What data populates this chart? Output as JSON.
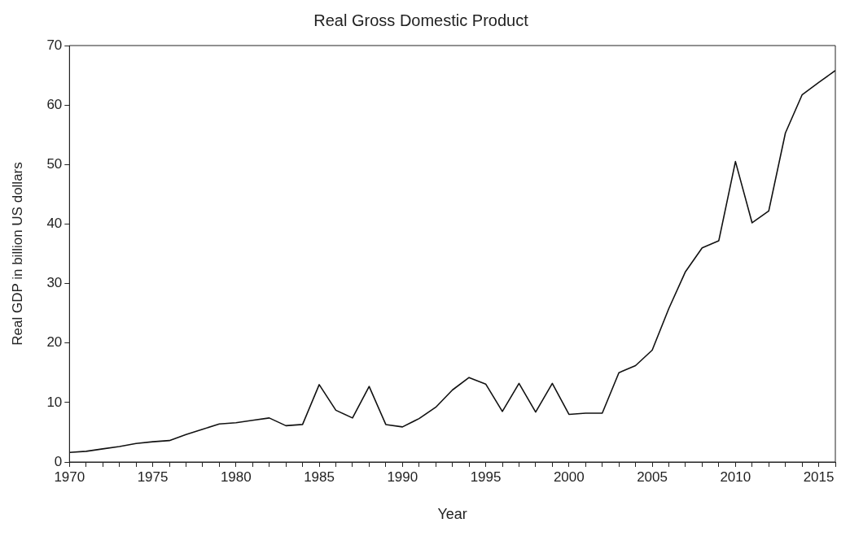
{
  "chart_data": {
    "type": "line",
    "title": "Real Gross Domestic Product",
    "xlabel": "Year",
    "ylabel": "Real GDP in billion US dollars",
    "x": [
      1970,
      1971,
      1972,
      1973,
      1974,
      1975,
      1976,
      1977,
      1978,
      1979,
      1980,
      1981,
      1982,
      1983,
      1984,
      1985,
      1986,
      1987,
      1988,
      1989,
      1990,
      1991,
      1992,
      1993,
      1994,
      1995,
      1996,
      1997,
      1998,
      1999,
      2000,
      2001,
      2002,
      2003,
      2004,
      2005,
      2006,
      2007,
      2008,
      2009,
      2010,
      2011,
      2012,
      2013,
      2014,
      2015,
      2016
    ],
    "series": [
      {
        "color": "#111111",
        "values": [
          1.6,
          1.8,
          2.2,
          2.6,
          3.1,
          3.4,
          3.6,
          4.6,
          5.5,
          6.4,
          6.6,
          7.0,
          7.4,
          6.1,
          6.3,
          13.0,
          8.7,
          7.4,
          12.7,
          6.3,
          5.9,
          7.3,
          9.2,
          12.1,
          14.2,
          13.1,
          8.5,
          13.2,
          8.4,
          13.2,
          8.0,
          8.2,
          8.2,
          15.0,
          16.2,
          18.8,
          25.8,
          32.0,
          36.0,
          37.2,
          50.5,
          40.2,
          42.2,
          55.3,
          61.7,
          63.8,
          65.8
        ]
      }
    ],
    "xlim": [
      1970,
      2016
    ],
    "xticks": [
      1970,
      {
        "value": 1971,
        "label": null
      },
      {
        "value": 1972,
        "label": null
      },
      {
        "value": 1973,
        "label": null
      },
      {
        "value": 1974,
        "label": null
      },
      1975,
      {
        "value": 1976,
        "label": null
      },
      {
        "value": 1977,
        "label": null
      },
      {
        "value": 1978,
        "label": null
      },
      {
        "value": 1979,
        "label": null
      },
      1980,
      {
        "value": 1981,
        "label": null
      },
      {
        "value": 1982,
        "label": null
      },
      {
        "value": 1983,
        "label": null
      },
      {
        "value": 1984,
        "label": null
      },
      1985,
      {
        "value": 1986,
        "label": null
      },
      {
        "value": 1987,
        "label": null
      },
      {
        "value": 1988,
        "label": null
      },
      {
        "value": 1989,
        "label": null
      },
      1990,
      {
        "value": 1991,
        "label": null
      },
      {
        "value": 1992,
        "label": null
      },
      {
        "value": 1993,
        "label": null
      },
      {
        "value": 1994,
        "label": null
      },
      1995,
      {
        "value": 1996,
        "label": null
      },
      {
        "value": 1997,
        "label": null
      },
      {
        "value": 1998,
        "label": null
      },
      {
        "value": 1999,
        "label": null
      },
      2000,
      {
        "value": 2001,
        "label": null
      },
      {
        "value": 2002,
        "label": null
      },
      {
        "value": 2003,
        "label": null
      },
      {
        "value": 2004,
        "label": null
      },
      2005,
      {
        "value": 2006,
        "label": null
      },
      {
        "value": 2007,
        "label": null
      },
      {
        "value": 2008,
        "label": null
      },
      {
        "value": 2009,
        "label": null
      },
      2010,
      {
        "value": 2011,
        "label": null
      },
      {
        "value": 2012,
        "label": null
      },
      {
        "value": 2013,
        "label": null
      },
      {
        "value": 2014,
        "label": null
      },
      2015,
      {
        "value": 2016,
        "label": null
      }
    ],
    "ylim": [
      0,
      70
    ],
    "yticks": [
      0,
      10,
      20,
      30,
      40,
      50,
      60,
      70
    ],
    "grid": false,
    "legend": false,
    "marker": "none",
    "line_style": "solid"
  }
}
